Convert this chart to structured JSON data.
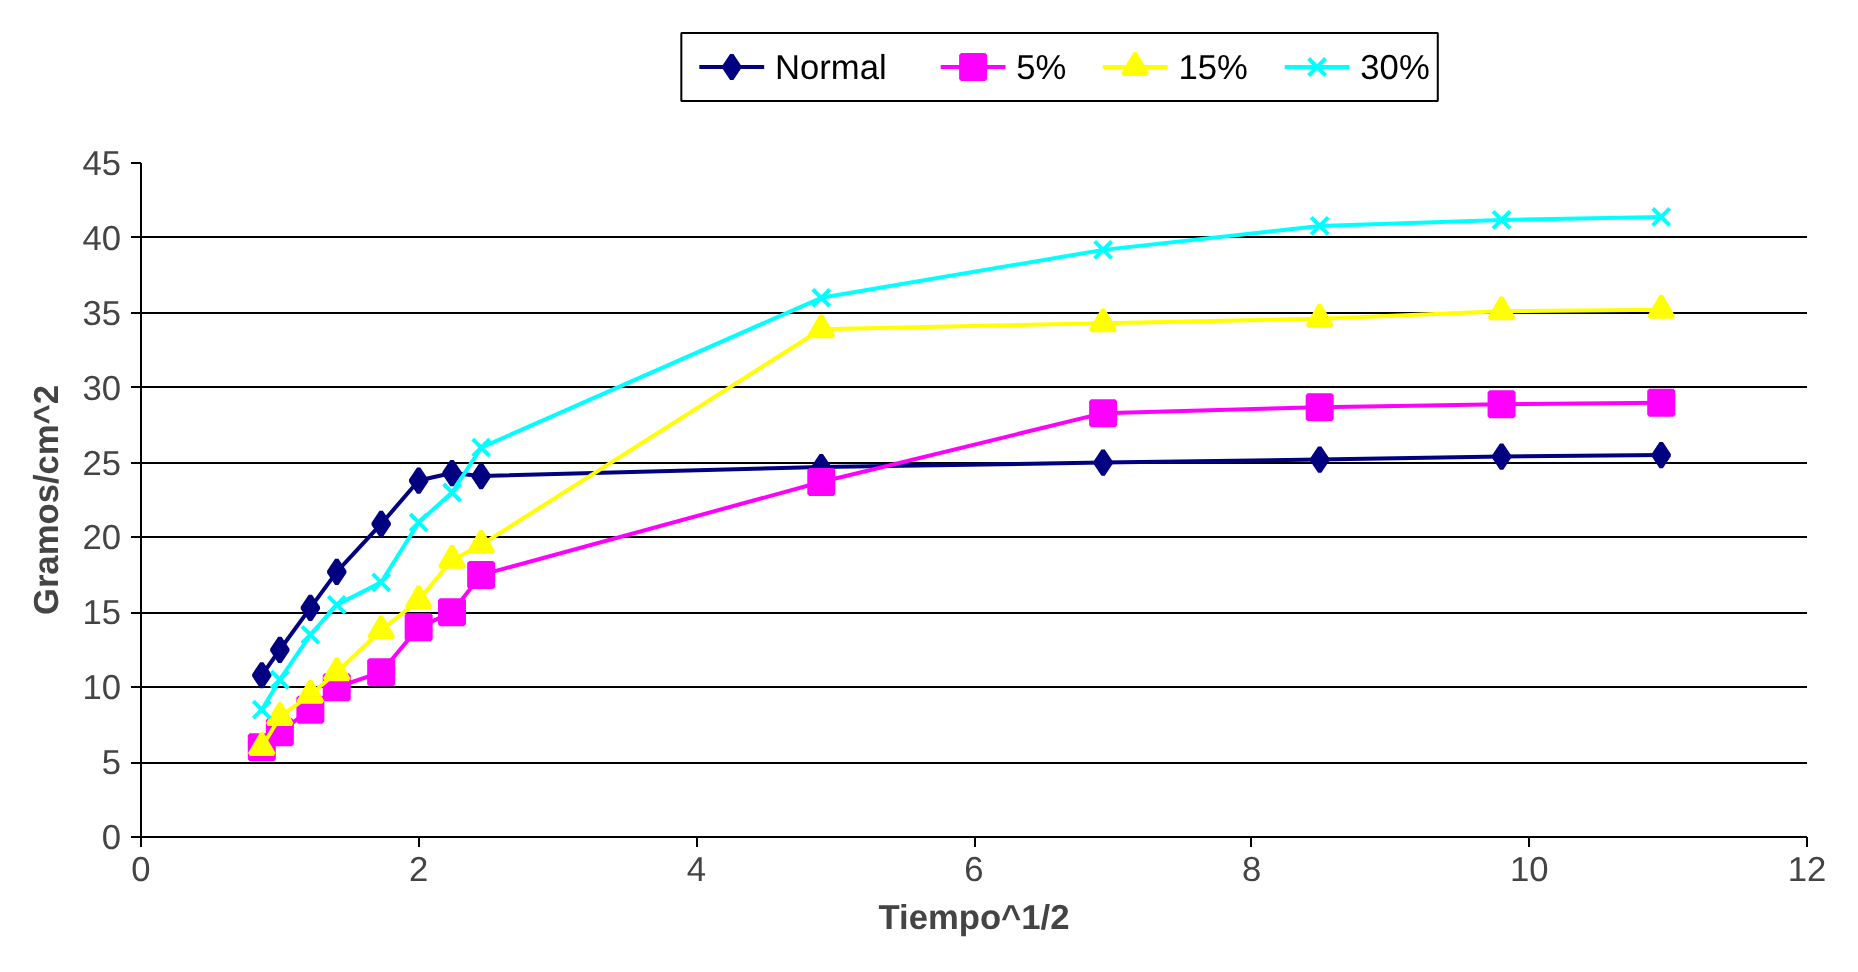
{
  "chart_data": {
    "type": "line",
    "xlabel": "Tiempo^1/2",
    "ylabel": "Gramos/cm^2",
    "x": [
      0.87,
      1.0,
      1.22,
      1.41,
      1.73,
      2.0,
      2.24,
      2.45,
      4.9,
      6.93,
      8.49,
      9.8,
      10.95
    ],
    "series": [
      {
        "name": "Normal",
        "color": "#000080",
        "marker": "diamond",
        "values": [
          10.8,
          12.5,
          15.3,
          17.7,
          20.9,
          23.8,
          24.3,
          24.1,
          24.7,
          25.0,
          25.2,
          25.4,
          25.5
        ]
      },
      {
        "name": "5%",
        "color": "#ff00ff",
        "marker": "square",
        "values": [
          6,
          7,
          8.5,
          10,
          11,
          14,
          15,
          17.5,
          23.7,
          28.3,
          28.7,
          28.9,
          29.0
        ]
      },
      {
        "name": "15%",
        "color": "#ffff00",
        "marker": "triangle",
        "values": [
          6,
          8,
          9.5,
          11,
          13.8,
          15.8,
          18.5,
          19.5,
          33.9,
          34.3,
          34.6,
          35.1,
          35.2
        ]
      },
      {
        "name": "30%",
        "color": "#00ffff",
        "marker": "cross",
        "values": [
          8.5,
          10.5,
          13.5,
          15.5,
          17,
          21,
          23,
          26,
          36,
          39.2,
          40.8,
          41.2,
          41.4
        ]
      }
    ],
    "xlim": [
      0,
      12
    ],
    "xticks": [
      0,
      2,
      4,
      6,
      8,
      10,
      12
    ],
    "ylim": [
      0,
      45
    ],
    "yticks": [
      0,
      5,
      10,
      15,
      20,
      25,
      30,
      35,
      40,
      45
    ],
    "grid": "y",
    "legend": "top",
    "line_style": "solid"
  }
}
